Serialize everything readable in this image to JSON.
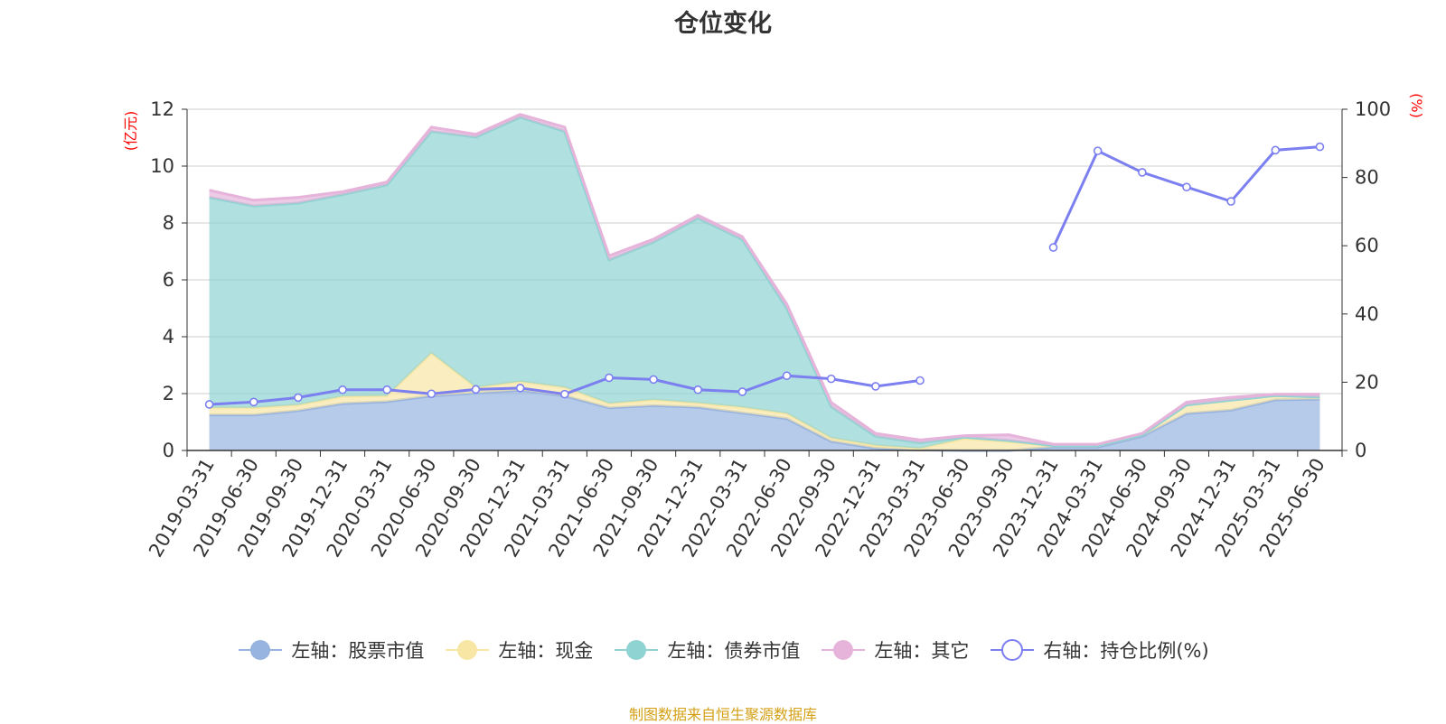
{
  "title": "仓位变化",
  "left_unit": "(亿元)",
  "right_unit": "(%)",
  "source_note": "制图数据来自恒生聚源数据库",
  "colors": {
    "stock": "#97b3df",
    "cash": "#f8e6a5",
    "bond": "#8fd3d2",
    "other": "#e6b4da",
    "ratio": "#7b7ff0"
  },
  "legend": [
    {
      "label": "左轴：股票市值",
      "color": "#97b3df",
      "marker": "circle-filled"
    },
    {
      "label": "左轴：现金",
      "color": "#f8e6a5",
      "marker": "circle-filled"
    },
    {
      "label": "左轴：债券市值",
      "color": "#8fd3d2",
      "marker": "circle-filled"
    },
    {
      "label": "左轴：其它",
      "color": "#e6b4da",
      "marker": "circle-filled"
    },
    {
      "label": "右轴：持仓比例(%)",
      "color": "#7b7ff0",
      "marker": "circle-hollow"
    }
  ],
  "chart_data": {
    "type": "area",
    "stacked": true,
    "categories": [
      "2019-03-31",
      "2019-06-30",
      "2019-09-30",
      "2019-12-31",
      "2020-03-31",
      "2020-06-30",
      "2020-09-30",
      "2020-12-31",
      "2021-03-31",
      "2021-06-30",
      "2021-09-30",
      "2021-12-31",
      "2022-03-31",
      "2022-06-30",
      "2022-09-30",
      "2022-12-31",
      "2023-03-31",
      "2023-06-30",
      "2023-09-30",
      "2023-12-31",
      "2024-03-31",
      "2024-06-30",
      "2024-09-30",
      "2024-12-31",
      "2025-03-31",
      "2025-06-30"
    ],
    "left_axis": {
      "ylim": [
        0,
        12
      ],
      "ticks": [
        0,
        2,
        4,
        6,
        8,
        10,
        12
      ]
    },
    "right_axis": {
      "ylim": [
        0,
        100
      ],
      "ticks": [
        0,
        20,
        40,
        60,
        80,
        100
      ]
    },
    "grid": true,
    "legend_position": "bottom",
    "series": [
      {
        "name": "左轴：股票市值",
        "axis": "left",
        "values": [
          1.25,
          1.25,
          1.4,
          1.65,
          1.72,
          1.92,
          2.02,
          2.12,
          1.92,
          1.5,
          1.58,
          1.52,
          1.32,
          1.12,
          0.32,
          0.08,
          0.02,
          0.0,
          0.0,
          0.12,
          0.12,
          0.5,
          1.3,
          1.42,
          1.78,
          1.8
        ]
      },
      {
        "name": "左轴：现金",
        "axis": "left",
        "values": [
          0.25,
          0.25,
          0.2,
          0.25,
          0.2,
          1.5,
          0.2,
          0.3,
          0.3,
          0.15,
          0.2,
          0.15,
          0.2,
          0.18,
          0.12,
          0.1,
          0.05,
          0.42,
          0.3,
          0.05,
          0.05,
          0.05,
          0.3,
          0.35,
          0.15,
          0.08
        ]
      },
      {
        "name": "左轴：债券市值",
        "axis": "left",
        "values": [
          7.4,
          7.1,
          7.1,
          7.1,
          7.42,
          7.8,
          8.8,
          9.3,
          9.0,
          5.05,
          5.55,
          6.5,
          5.9,
          3.7,
          1.1,
          0.32,
          0.2,
          0.05,
          0.05,
          0.0,
          0.0,
          0.0,
          0.0,
          0.0,
          0.0,
          0.0
        ]
      },
      {
        "name": "左轴：其它",
        "axis": "left",
        "values": [
          0.25,
          0.2,
          0.2,
          0.1,
          0.1,
          0.15,
          0.1,
          0.1,
          0.15,
          0.15,
          0.1,
          0.1,
          0.1,
          0.15,
          0.15,
          0.1,
          0.1,
          0.05,
          0.2,
          0.05,
          0.05,
          0.05,
          0.1,
          0.1,
          0.05,
          0.1
        ]
      },
      {
        "name": "右轴：持仓比例(%)",
        "axis": "right",
        "values": [
          13.5,
          14.2,
          15.5,
          17.8,
          17.8,
          16.6,
          17.9,
          18.3,
          16.5,
          21.3,
          20.8,
          17.8,
          17.2,
          21.9,
          21.0,
          18.8,
          20.5,
          null,
          null,
          59.5,
          87.8,
          81.5,
          77.2,
          73.0,
          88.0,
          89.0
        ]
      }
    ]
  }
}
